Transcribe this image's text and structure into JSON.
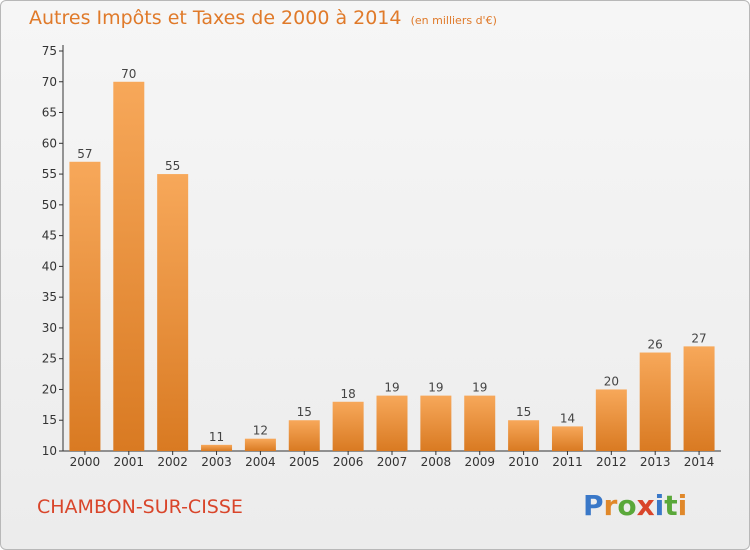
{
  "chart_data": {
    "type": "bar",
    "title": "Autres Impôts et Taxes de 2000 à 2014",
    "subtitle": "(en milliers d'€)",
    "categories": [
      "2000",
      "2001",
      "2002",
      "2003",
      "2004",
      "2005",
      "2006",
      "2007",
      "2008",
      "2009",
      "2010",
      "2011",
      "2012",
      "2013",
      "2014"
    ],
    "values": [
      57,
      70,
      55,
      11,
      12,
      15,
      18,
      19,
      19,
      19,
      15,
      14,
      20,
      26,
      27
    ],
    "ylim": [
      10,
      75
    ],
    "yticks": [
      10,
      15,
      20,
      25,
      30,
      35,
      40,
      45,
      50,
      55,
      60,
      65,
      70,
      75
    ],
    "grid": false,
    "xlabel": "",
    "ylabel": ""
  },
  "location": "CHAMBON-SUR-CISSE",
  "logo": "Proxiti",
  "colors": {
    "bar_light": "#f7a85a",
    "bar_dark": "#d97a22",
    "title": "#e07a2a",
    "location": "#d9452a",
    "axis": "#333333"
  }
}
